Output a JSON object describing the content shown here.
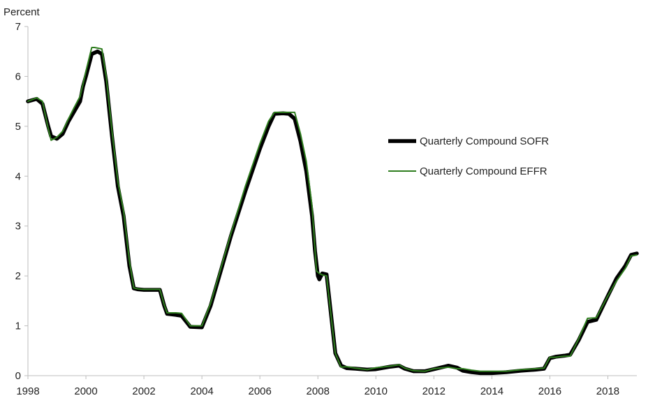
{
  "chart_data": {
    "type": "line",
    "ylabel": "Percent",
    "xlabel": "",
    "xlim": [
      1998.0,
      2019.0
    ],
    "ylim": [
      0,
      7
    ],
    "x_ticks": [
      1998,
      2000,
      2002,
      2004,
      2006,
      2008,
      2010,
      2012,
      2014,
      2016,
      2018
    ],
    "y_ticks": [
      0,
      1,
      2,
      3,
      4,
      5,
      6,
      7
    ],
    "grid": false,
    "legend_position": "right-center",
    "series": [
      {
        "name": "Quarterly Compound SOFR",
        "color": "#000000",
        "x": [
          1998.0,
          1998.3,
          1998.5,
          1998.7,
          1998.8,
          1999.0,
          1999.2,
          1999.4,
          1999.6,
          1999.8,
          1999.9,
          2000.0,
          2000.2,
          2000.4,
          2000.55,
          2000.7,
          2000.9,
          2001.1,
          2001.3,
          2001.5,
          2001.65,
          2001.8,
          2002.0,
          2002.3,
          2002.55,
          2002.7,
          2002.8,
          2003.1,
          2003.3,
          2003.6,
          2004.0,
          2004.3,
          2004.6,
          2005.0,
          2005.5,
          2006.0,
          2006.3,
          2006.5,
          2006.8,
          2007.0,
          2007.2,
          2007.4,
          2007.6,
          2007.8,
          2007.9,
          2008.0,
          2008.05,
          2008.15,
          2008.3,
          2008.6,
          2008.8,
          2009.0,
          2009.3,
          2009.7,
          2010.0,
          2010.5,
          2010.8,
          2011.0,
          2011.3,
          2011.7,
          2012.0,
          2012.5,
          2012.8,
          2013.0,
          2013.3,
          2013.6,
          2014.0,
          2014.5,
          2015.0,
          2015.5,
          2015.8,
          2016.0,
          2016.2,
          2016.5,
          2016.7,
          2017.0,
          2017.3,
          2017.6,
          2018.0,
          2018.3,
          2018.6,
          2018.8,
          2019.0
        ],
        "values": [
          5.5,
          5.55,
          5.45,
          5.0,
          4.8,
          4.75,
          4.85,
          5.1,
          5.3,
          5.5,
          5.8,
          6.0,
          6.45,
          6.5,
          6.45,
          5.9,
          4.8,
          3.8,
          3.2,
          2.2,
          1.75,
          1.73,
          1.72,
          1.72,
          1.72,
          1.4,
          1.24,
          1.22,
          1.2,
          0.98,
          0.97,
          1.4,
          2.0,
          2.8,
          3.7,
          4.55,
          5.0,
          5.25,
          5.26,
          5.25,
          5.15,
          4.7,
          4.1,
          3.2,
          2.5,
          2.0,
          1.93,
          2.05,
          2.03,
          0.45,
          0.2,
          0.15,
          0.14,
          0.12,
          0.13,
          0.18,
          0.2,
          0.14,
          0.09,
          0.09,
          0.13,
          0.2,
          0.16,
          0.1,
          0.07,
          0.05,
          0.05,
          0.07,
          0.1,
          0.12,
          0.14,
          0.35,
          0.38,
          0.4,
          0.42,
          0.72,
          1.08,
          1.12,
          1.6,
          1.95,
          2.2,
          2.42,
          2.45
        ]
      },
      {
        "name": "Quarterly Compound EFFR",
        "color": "#2e7d1e",
        "x": [
          1998.0,
          1998.3,
          1998.5,
          1998.7,
          1998.8,
          1999.0,
          1999.2,
          1999.4,
          1999.6,
          1999.8,
          1999.9,
          2000.0,
          2000.2,
          2000.3,
          2000.55,
          2000.7,
          2000.9,
          2001.1,
          2001.3,
          2001.5,
          2001.65,
          2001.8,
          2002.0,
          2002.3,
          2002.55,
          2002.7,
          2002.8,
          2003.1,
          2003.3,
          2003.6,
          2004.0,
          2004.3,
          2004.6,
          2005.0,
          2005.5,
          2006.0,
          2006.3,
          2006.5,
          2006.8,
          2007.0,
          2007.2,
          2007.4,
          2007.6,
          2007.8,
          2007.95,
          2008.05,
          2008.15,
          2008.3,
          2008.6,
          2008.8,
          2009.0,
          2009.3,
          2009.7,
          2010.0,
          2010.5,
          2010.8,
          2011.0,
          2011.3,
          2011.7,
          2012.0,
          2012.5,
          2012.8,
          2013.0,
          2013.3,
          2013.6,
          2014.0,
          2014.5,
          2015.0,
          2015.5,
          2015.8,
          2016.0,
          2016.2,
          2016.5,
          2016.7,
          2017.0,
          2017.3,
          2017.6,
          2018.0,
          2018.3,
          2018.6,
          2018.8,
          2019.0
        ],
        "values": [
          5.5,
          5.57,
          5.5,
          4.95,
          4.72,
          4.78,
          4.9,
          5.15,
          5.38,
          5.6,
          5.85,
          6.1,
          6.58,
          6.58,
          6.55,
          6.0,
          4.9,
          3.9,
          3.3,
          2.3,
          1.76,
          1.74,
          1.73,
          1.73,
          1.73,
          1.42,
          1.26,
          1.26,
          1.25,
          1.0,
          1.0,
          1.45,
          2.05,
          2.85,
          3.8,
          4.65,
          5.1,
          5.28,
          5.28,
          5.28,
          5.28,
          4.85,
          4.3,
          3.4,
          2.1,
          2.05,
          2.02,
          2.0,
          0.45,
          0.17,
          0.18,
          0.15,
          0.12,
          0.16,
          0.19,
          0.22,
          0.15,
          0.1,
          0.09,
          0.14,
          0.17,
          0.14,
          0.14,
          0.11,
          0.09,
          0.09,
          0.09,
          0.12,
          0.14,
          0.15,
          0.37,
          0.37,
          0.39,
          0.39,
          0.75,
          1.15,
          1.16,
          1.6,
          1.9,
          2.15,
          2.4,
          2.42
        ]
      }
    ]
  }
}
